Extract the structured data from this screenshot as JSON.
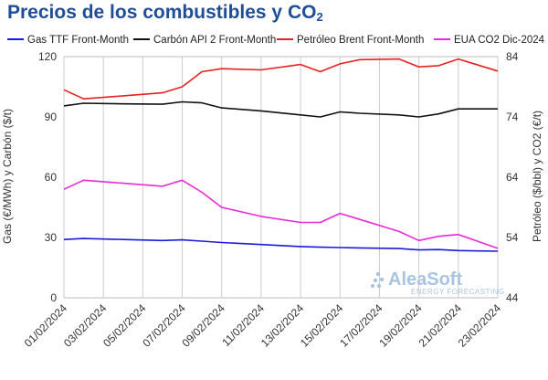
{
  "title": {
    "main": "Precios de los combustibles y CO",
    "subscript": "2"
  },
  "watermark": {
    "brand": "AleaSoft",
    "tagline": "ENERGY FORECASTING"
  },
  "chart_data": {
    "type": "line",
    "x": [
      "01/02/2024",
      "02/02/2024",
      "03/02/2024",
      "04/02/2024",
      "05/02/2024",
      "06/02/2024",
      "07/02/2024",
      "08/02/2024",
      "09/02/2024",
      "10/02/2024",
      "11/02/2024",
      "12/02/2024",
      "13/02/2024",
      "14/02/2024",
      "15/02/2024",
      "16/02/2024",
      "17/02/2024",
      "18/02/2024",
      "19/02/2024",
      "20/02/2024",
      "21/02/2024",
      "22/02/2024",
      "23/02/2024"
    ],
    "x_tick_labels": [
      "01/02/2024",
      "03/02/2024",
      "05/02/2024",
      "07/02/2024",
      "09/02/2024",
      "11/02/2024",
      "13/02/2024",
      "15/02/2024",
      "17/02/2024",
      "19/02/2024",
      "21/02/2024",
      "23/02/2024"
    ],
    "y_left": {
      "label": "Gas (€/MWh) y Carbón ($/t)",
      "range": [
        0,
        120
      ],
      "ticks": [
        "0",
        "30",
        "60",
        "90",
        "120"
      ]
    },
    "y_right": {
      "label": "Petróleo ($/bbl) y CO2 (€/t)",
      "range": [
        44,
        84
      ],
      "ticks": [
        "44",
        "54",
        "64",
        "74",
        "84"
      ]
    },
    "grid": "vertical",
    "legend_position": "top",
    "series": [
      {
        "name": "Gas TTF Front-Month",
        "axis": "left",
        "color": "#1a1adb",
        "values": [
          29.0,
          29.5,
          null,
          29.0,
          null,
          28.5,
          28.8,
          28.2,
          27.5,
          null,
          26.5,
          null,
          25.5,
          25.2,
          25.0,
          24.8,
          null,
          24.5,
          23.8,
          24.0,
          23.5,
          null,
          23.2
        ]
      },
      {
        "name": "Carbón API 2 Front-Month",
        "axis": "left",
        "color": "#111111",
        "values": [
          95.5,
          96.8,
          null,
          96.5,
          null,
          96.3,
          97.5,
          97.0,
          94.5,
          null,
          93.0,
          null,
          91.0,
          90.0,
          92.5,
          91.8,
          null,
          91.0,
          90.0,
          91.5,
          94.0,
          null,
          94.0
        ]
      },
      {
        "name": "Petróleo Brent Front-Month",
        "axis": "right",
        "color": "#e82020",
        "values": [
          78.5,
          77.0,
          null,
          77.5,
          null,
          78.0,
          79.0,
          81.5,
          82.0,
          null,
          81.8,
          null,
          82.7,
          81.5,
          82.8,
          83.5,
          null,
          83.6,
          82.3,
          82.5,
          83.6,
          null,
          81.6
        ]
      },
      {
        "name": "EUA CO2 Dic-2024",
        "axis": "right",
        "color": "#e82ad9",
        "values": [
          62.0,
          63.5,
          null,
          63.0,
          null,
          62.5,
          63.5,
          61.5,
          59.0,
          null,
          57.5,
          null,
          56.5,
          56.5,
          58.0,
          57.0,
          null,
          55.0,
          53.5,
          54.2,
          54.5,
          null,
          52.2
        ]
      }
    ]
  }
}
